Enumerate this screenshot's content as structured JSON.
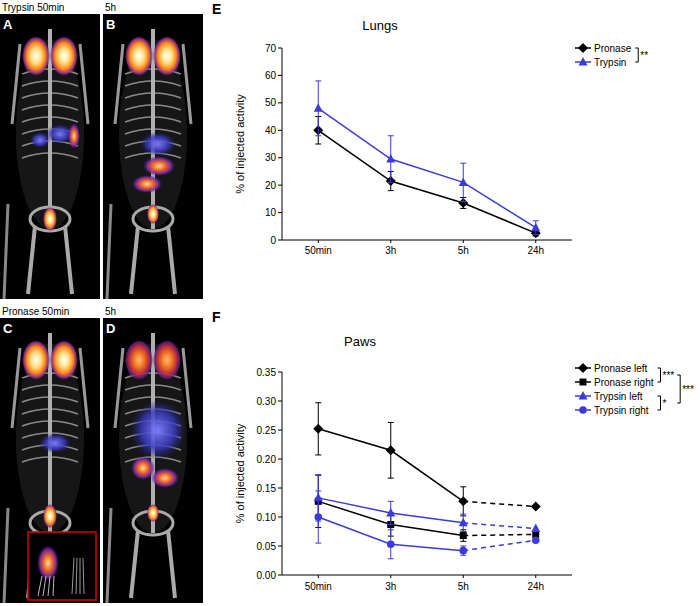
{
  "panels": [
    {
      "letter": "A",
      "caption": "Trypsin 50min"
    },
    {
      "letter": "B",
      "caption": "5h"
    },
    {
      "letter": "C",
      "caption": "Pronase 50min"
    },
    {
      "letter": "D",
      "caption": "5h"
    }
  ],
  "chart_data": [
    {
      "panel": "E",
      "type": "line",
      "title": "Lungs",
      "y_label": "% of injected activity",
      "categories": [
        "50min",
        "3h",
        "5h",
        "24h"
      ],
      "ylim": [
        0,
        70
      ],
      "yticks": [
        0,
        10,
        20,
        30,
        40,
        50,
        60,
        70
      ],
      "legend": "right",
      "series": [
        {
          "name": "Pronase",
          "color": "#000000",
          "marker": "diamond",
          "line_style": "solid",
          "values": [
            40,
            21.5,
            13.5,
            2.5
          ],
          "errors": [
            5,
            3.5,
            2,
            1
          ]
        },
        {
          "name": "Trypsin",
          "color": "#3b3bd9",
          "marker": "triangle",
          "line_style": "solid",
          "values": [
            48,
            29.5,
            21,
            4.5
          ],
          "errors": [
            10,
            8.5,
            7,
            2.5
          ]
        }
      ],
      "annotations": [
        {
          "text": "**",
          "between": [
            0,
            1
          ]
        }
      ]
    },
    {
      "panel": "F",
      "type": "line",
      "title": "Paws",
      "y_label": "% of injected activity",
      "categories": [
        "50min",
        "3h",
        "5h",
        "24h"
      ],
      "ylim": [
        0,
        0.35
      ],
      "yticks": [
        {
          "value": 0,
          "label": "0.00"
        },
        0.05,
        {
          "value": 0.1,
          "label": "0.10"
        },
        0.15,
        {
          "value": 0.2,
          "label": "0.20"
        },
        0.25,
        {
          "value": 0.3,
          "label": "0.30"
        },
        0.35
      ],
      "legend": "right",
      "series": [
        {
          "name": "Pronase left",
          "color": "#000000",
          "marker": "diamond",
          "line_style": "solid",
          "values": [
            0.252,
            0.215,
            0.127,
            0.118
          ],
          "errors": [
            0.045,
            0.048,
            0.025,
            null
          ]
        },
        {
          "name": "Pronase right",
          "color": "#000000",
          "marker": "square",
          "line_style": "solid",
          "values": [
            0.127,
            0.087,
            0.068,
            0.07
          ],
          "errors": [
            0.045,
            0.02,
            0.01,
            null
          ]
        },
        {
          "name": "Trypsin left",
          "color": "#3b3bd9",
          "marker": "triangle",
          "line_style": "solid",
          "values": [
            0.133,
            0.107,
            0.09,
            0.08
          ],
          "errors": [
            0.04,
            0.02,
            0.015,
            null
          ]
        },
        {
          "name": "Trypsin right",
          "color": "#3b3bd9",
          "marker": "circle",
          "line_style": "solid",
          "values": [
            0.1,
            0.053,
            0.042,
            0.06
          ],
          "errors": [
            0.045,
            0.025,
            0.008,
            null
          ]
        }
      ],
      "annotations": [
        {
          "text": "***",
          "between": [
            0,
            1
          ]
        },
        {
          "text": "*",
          "between": [
            2,
            3
          ]
        },
        {
          "text": "***",
          "between": [
            0,
            3
          ]
        }
      ]
    }
  ]
}
